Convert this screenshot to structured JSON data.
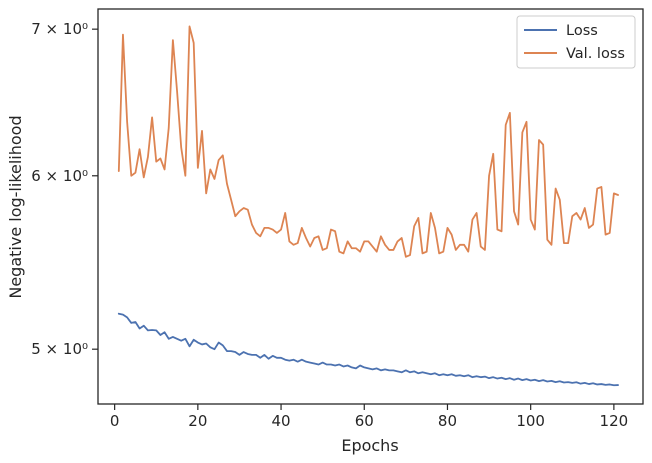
{
  "chart_data": {
    "type": "line",
    "xlabel": "Epochs",
    "ylabel": "Negative log-likelihood",
    "yscale": "log",
    "xlim": [
      -4,
      127
    ],
    "ylim": [
      4.72,
      7.15
    ],
    "xticks": [
      0,
      20,
      40,
      60,
      80,
      100,
      120
    ],
    "xtick_labels": [
      "0",
      "20",
      "40",
      "60",
      "80",
      "100",
      "120"
    ],
    "yticks": [
      5,
      6,
      7
    ],
    "ytick_labels": [
      "5 × 10⁰",
      "6 × 10⁰",
      "7 × 10⁰"
    ],
    "grid": false,
    "legend_position": "top-right",
    "series": [
      {
        "name": "Loss",
        "color": "#4c72b0",
        "x": [
          1,
          2,
          3,
          4,
          5,
          6,
          7,
          8,
          9,
          10,
          11,
          12,
          13,
          14,
          15,
          16,
          17,
          18,
          19,
          20,
          21,
          22,
          23,
          24,
          25,
          26,
          27,
          28,
          29,
          30,
          31,
          32,
          33,
          34,
          35,
          36,
          37,
          38,
          39,
          40,
          41,
          42,
          43,
          44,
          45,
          46,
          47,
          48,
          49,
          50,
          51,
          52,
          53,
          54,
          55,
          56,
          57,
          58,
          59,
          60,
          61,
          62,
          63,
          64,
          65,
          66,
          67,
          68,
          69,
          70,
          71,
          72,
          73,
          74,
          75,
          76,
          77,
          78,
          79,
          80,
          81,
          82,
          83,
          84,
          85,
          86,
          87,
          88,
          89,
          90,
          91,
          92,
          93,
          94,
          95,
          96,
          97,
          98,
          99,
          100,
          101,
          102,
          103,
          104,
          105,
          106,
          107,
          108,
          109,
          110,
          111,
          112,
          113,
          114,
          115,
          116,
          117,
          118,
          119,
          120,
          121
        ],
        "values": [
          5.19,
          5.185,
          5.17,
          5.14,
          5.145,
          5.11,
          5.125,
          5.1,
          5.102,
          5.1,
          5.075,
          5.09,
          5.055,
          5.065,
          5.055,
          5.045,
          5.055,
          5.015,
          5.05,
          5.035,
          5.025,
          5.03,
          5.01,
          5.0,
          5.035,
          5.02,
          4.99,
          4.99,
          4.985,
          4.97,
          4.985,
          4.975,
          4.97,
          4.97,
          4.955,
          4.97,
          4.95,
          4.965,
          4.955,
          4.955,
          4.945,
          4.94,
          4.945,
          4.935,
          4.945,
          4.935,
          4.93,
          4.925,
          4.92,
          4.93,
          4.92,
          4.92,
          4.915,
          4.92,
          4.91,
          4.915,
          4.905,
          4.9,
          4.915,
          4.905,
          4.9,
          4.895,
          4.9,
          4.89,
          4.895,
          4.89,
          4.89,
          4.885,
          4.88,
          4.89,
          4.88,
          4.885,
          4.875,
          4.88,
          4.875,
          4.87,
          4.875,
          4.865,
          4.87,
          4.865,
          4.87,
          4.862,
          4.865,
          4.86,
          4.865,
          4.855,
          4.86,
          4.855,
          4.858,
          4.85,
          4.855,
          4.848,
          4.852,
          4.845,
          4.85,
          4.842,
          4.848,
          4.84,
          4.845,
          4.838,
          4.842,
          4.835,
          4.84,
          4.833,
          4.836,
          4.83,
          4.834,
          4.828,
          4.83,
          4.826,
          4.829,
          4.822,
          4.826,
          4.82,
          4.824,
          4.818,
          4.82,
          4.816,
          4.818,
          4.814,
          4.815
        ]
      },
      {
        "name": "Val. loss",
        "color": "#dd8452",
        "x": [
          1,
          2,
          3,
          4,
          5,
          6,
          7,
          8,
          9,
          10,
          11,
          12,
          13,
          14,
          15,
          16,
          17,
          18,
          19,
          20,
          21,
          22,
          23,
          24,
          25,
          26,
          27,
          28,
          29,
          30,
          31,
          32,
          33,
          34,
          35,
          36,
          37,
          38,
          39,
          40,
          41,
          42,
          43,
          44,
          45,
          46,
          47,
          48,
          49,
          50,
          51,
          52,
          53,
          54,
          55,
          56,
          57,
          58,
          59,
          60,
          61,
          62,
          63,
          64,
          65,
          66,
          67,
          68,
          69,
          70,
          71,
          72,
          73,
          74,
          75,
          76,
          77,
          78,
          79,
          80,
          81,
          82,
          83,
          84,
          85,
          86,
          87,
          88,
          89,
          90,
          91,
          92,
          93,
          94,
          95,
          96,
          97,
          98,
          99,
          100,
          101,
          102,
          103,
          104,
          105,
          106,
          107,
          108,
          109,
          110,
          111,
          112,
          113,
          114,
          115,
          116,
          117,
          118,
          119,
          120,
          121
        ],
        "values": [
          6.03,
          6.96,
          6.35,
          6.0,
          6.02,
          6.17,
          5.99,
          6.12,
          6.38,
          6.09,
          6.11,
          6.04,
          6.31,
          6.92,
          6.56,
          6.18,
          6.0,
          7.02,
          6.9,
          6.05,
          6.29,
          5.89,
          6.04,
          5.98,
          6.1,
          6.13,
          5.95,
          5.85,
          5.75,
          5.78,
          5.8,
          5.79,
          5.7,
          5.65,
          5.63,
          5.68,
          5.68,
          5.67,
          5.65,
          5.67,
          5.77,
          5.6,
          5.58,
          5.59,
          5.68,
          5.62,
          5.57,
          5.62,
          5.63,
          5.55,
          5.56,
          5.67,
          5.66,
          5.54,
          5.53,
          5.6,
          5.56,
          5.56,
          5.54,
          5.6,
          5.6,
          5.57,
          5.54,
          5.63,
          5.58,
          5.55,
          5.55,
          5.6,
          5.62,
          5.51,
          5.52,
          5.69,
          5.74,
          5.53,
          5.54,
          5.77,
          5.68,
          5.53,
          5.54,
          5.68,
          5.64,
          5.55,
          5.58,
          5.58,
          5.54,
          5.73,
          5.77,
          5.57,
          5.55,
          6.0,
          6.14,
          5.67,
          5.66,
          6.33,
          6.41,
          5.78,
          5.7,
          6.28,
          6.35,
          5.73,
          5.67,
          6.23,
          6.2,
          5.61,
          5.58,
          5.92,
          5.85,
          5.59,
          5.59,
          5.75,
          5.77,
          5.73,
          5.8,
          5.68,
          5.7,
          5.92,
          5.93,
          5.64,
          5.65,
          5.89,
          5.88
        ]
      }
    ]
  }
}
